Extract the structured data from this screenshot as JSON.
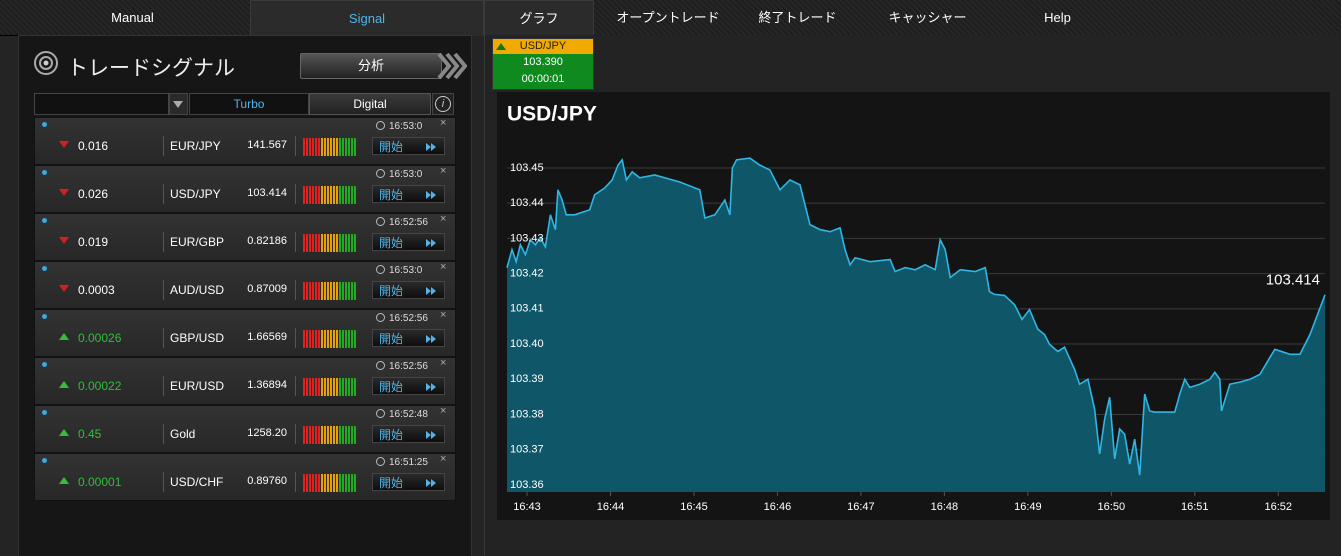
{
  "nav": {
    "items": [
      "Manual",
      "Signal",
      "グラフ",
      "オープントレード",
      "終了トレード",
      "キャッシャー",
      "Help"
    ]
  },
  "signals": {
    "title": "トレードシグナル",
    "analyze_button": "分析",
    "tabs": [
      "Turbo",
      "Digital"
    ],
    "button_label": "開始",
    "rows": [
      {
        "direction": "down",
        "change": "0.016",
        "pair": "EUR/JPY",
        "price": "141.567",
        "time": "16:53:0"
      },
      {
        "direction": "down",
        "change": "0.026",
        "pair": "USD/JPY",
        "price": "103.414",
        "time": "16:53:0"
      },
      {
        "direction": "down",
        "change": "0.019",
        "pair": "EUR/GBP",
        "price": "0.82186",
        "time": "16:52:56"
      },
      {
        "direction": "down",
        "change": "0.0003",
        "pair": "AUD/USD",
        "price": "0.87009",
        "time": "16:53:0"
      },
      {
        "direction": "up",
        "change": "0.00026",
        "pair": "GBP/USD",
        "price": "1.66569",
        "time": "16:52:56"
      },
      {
        "direction": "up",
        "change": "0.00022",
        "pair": "EUR/USD",
        "price": "1.36894",
        "time": "16:52:56"
      },
      {
        "direction": "up",
        "change": "0.45",
        "pair": "Gold",
        "price": "1258.20",
        "time": "16:52:48"
      },
      {
        "direction": "up",
        "change": "0.00001",
        "pair": "USD/CHF",
        "price": "0.89760",
        "time": "16:51:25"
      }
    ]
  },
  "ticker": {
    "pair": "USD/JPY",
    "price": "103.390",
    "timer": "00:00:01"
  },
  "chart_data": {
    "type": "area",
    "title": "USD/JPY",
    "color": "#2fb6e3",
    "grid": true,
    "x": [
      -0.24,
      -0.18,
      -0.13,
      -0.08,
      -0.02,
      0.04,
      0.1,
      0.16,
      0.22,
      0.28,
      0.34,
      0.37,
      0.42,
      0.47,
      0.57,
      0.75,
      0.81,
      0.93,
      1.02,
      1.09,
      1.14,
      1.19,
      1.26,
      1.35,
      1.53,
      1.83,
      2.07,
      2.13,
      2.25,
      2.37,
      2.43,
      2.46,
      2.51,
      2.67,
      2.79,
      2.91,
      3.03,
      3.15,
      3.27,
      3.39,
      3.51,
      3.63,
      3.75,
      3.81,
      3.87,
      3.93,
      4.11,
      4.35,
      4.41,
      4.53,
      4.65,
      4.77,
      4.89,
      4.95,
      5.01,
      5.07,
      5.19,
      5.37,
      5.49,
      5.54,
      5.6,
      5.72,
      5.84,
      5.93,
      6.02,
      6.12,
      6.2,
      6.26,
      6.36,
      6.44,
      6.56,
      6.62,
      6.72,
      6.8,
      6.86,
      6.92,
      6.98,
      7.04,
      7.1,
      7.16,
      7.22,
      7.28,
      7.34,
      7.4,
      7.46,
      7.52,
      7.76,
      7.82,
      7.88,
      7.94,
      8.06,
      8.18,
      8.24,
      8.3,
      8.32,
      8.42,
      8.54,
      8.66,
      8.78,
      8.9,
      8.96,
      9.14,
      9.26,
      9.38,
      9.56
    ],
    "values": [
      103.4217,
      103.4268,
      103.4234,
      103.4282,
      103.4254,
      103.4296,
      103.4282,
      103.4302,
      103.4276,
      103.4367,
      103.4325,
      103.4438,
      103.4409,
      103.4367,
      103.4367,
      103.4381,
      103.4424,
      103.4443,
      103.4466,
      103.4508,
      103.4523,
      103.4466,
      103.4489,
      103.4472,
      103.448,
      103.446,
      103.4438,
      103.4358,
      103.4367,
      103.4409,
      103.4367,
      103.45,
      103.4523,
      103.4528,
      103.4508,
      103.4494,
      103.4438,
      103.4466,
      103.4452,
      103.4339,
      103.4325,
      103.4319,
      103.433,
      103.4268,
      103.4225,
      103.4245,
      103.4234,
      103.424,
      103.4206,
      103.4217,
      103.4211,
      103.4225,
      103.4211,
      103.4296,
      103.4268,
      103.4189,
      103.4211,
      103.4206,
      103.4217,
      103.4149,
      103.4141,
      103.4138,
      103.4112,
      103.407,
      103.4098,
      103.4042,
      103.4027,
      103.3999,
      103.3979,
      103.3991,
      103.3928,
      103.3886,
      103.39,
      103.3815,
      103.3688,
      103.3787,
      103.3849,
      103.3674,
      103.3759,
      103.3744,
      103.3659,
      103.373,
      103.3628,
      103.3858,
      103.381,
      103.3807,
      103.3807,
      103.3858,
      103.39,
      103.3877,
      103.3886,
      103.39,
      103.392,
      103.39,
      103.381,
      103.3886,
      103.3892,
      103.39,
      103.3914,
      103.3962,
      103.3985,
      103.3971,
      103.3971,
      103.4027,
      103.414
    ],
    "xlim": [
      -0.24,
      9.56
    ],
    "xticks": [
      {
        "value": 0,
        "label": "16:43"
      },
      {
        "value": 1,
        "label": "16:44"
      },
      {
        "value": 2,
        "label": "16:45"
      },
      {
        "value": 3,
        "label": "16:46"
      },
      {
        "value": 4,
        "label": "16:47"
      },
      {
        "value": 5,
        "label": "16:48"
      },
      {
        "value": 6,
        "label": "16:49"
      },
      {
        "value": 7,
        "label": "16:50"
      },
      {
        "value": 8,
        "label": "16:51"
      },
      {
        "value": 9,
        "label": "16:52"
      }
    ],
    "ylim": [
      103.358,
      103.4585
    ],
    "yticks": [
      103.36,
      103.37,
      103.38,
      103.39,
      {
        "value": 103.4,
        "label": "103.40"
      },
      103.41,
      103.42,
      103.43,
      103.44,
      103.45
    ]
  }
}
